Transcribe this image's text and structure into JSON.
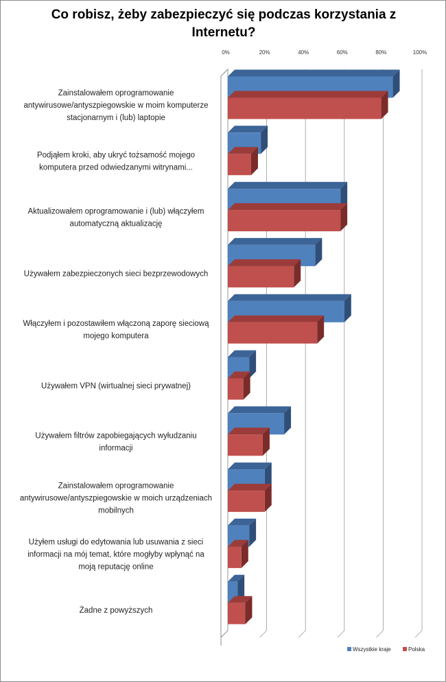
{
  "chart_data": {
    "type": "bar",
    "orientation": "horizontal",
    "three_d": true,
    "title": "Co robisz, żeby zabezpieczyć się podczas korzystania z Internetu?",
    "xlim": [
      0,
      100
    ],
    "tick_labels": [
      "0%",
      "20%",
      "40%",
      "60%",
      "80%",
      "100%"
    ],
    "tick_values": [
      0,
      20,
      40,
      60,
      80,
      100
    ],
    "grid": true,
    "legend_position": "bottom-right",
    "categories": [
      [
        "Zainstalowałem oprogramowanie",
        "antywirusowe/antyszpiegowskie w moim komputerze",
        "stacjonarnym i (lub) laptopie"
      ],
      [
        "Podjąłem kroki, aby ukryć tożsamość mojego",
        "komputera przed odwiedzanymi witrynami..."
      ],
      [
        "Aktualizowałem oprogramowanie i (lub) włączyłem",
        "automatyczną aktualizację"
      ],
      [
        "Używałem zabezpieczonych sieci bezprzewodowych"
      ],
      [
        "Włączyłem i pozostawiłem włączoną zaporę sieciową",
        "mojego komputera"
      ],
      [
        "Używałem VPN (wirtualnej sieci prywatnej)"
      ],
      [
        "Używałem filtrów zapobiegających wyłudzaniu",
        "informacji"
      ],
      [
        "Zainstalowałem oprogramowanie",
        "antywirusowe/antyszpiegowskie w moich urządzeniach",
        "mobilnych"
      ],
      [
        "Użyłem usługi do edytowania lub usuwania z sieci",
        "informacji na mój temat, które mogłyby wpłynąć na",
        "moją reputację online"
      ],
      [
        "Żadne z powyższych"
      ]
    ],
    "series": [
      {
        "name": "Wszystkie kraje",
        "color": "#4F81BD",
        "top_color": "#3C6496",
        "side_color": "#2F4F78",
        "values": [
          85,
          17,
          58,
          45,
          60,
          11,
          29,
          19,
          11,
          5
        ]
      },
      {
        "name": "Polska",
        "color": "#C0504D",
        "top_color": "#9B3C3A",
        "side_color": "#7A2C2A",
        "values": [
          79,
          12,
          58,
          34,
          46,
          8,
          18,
          19,
          7,
          9
        ]
      }
    ]
  }
}
